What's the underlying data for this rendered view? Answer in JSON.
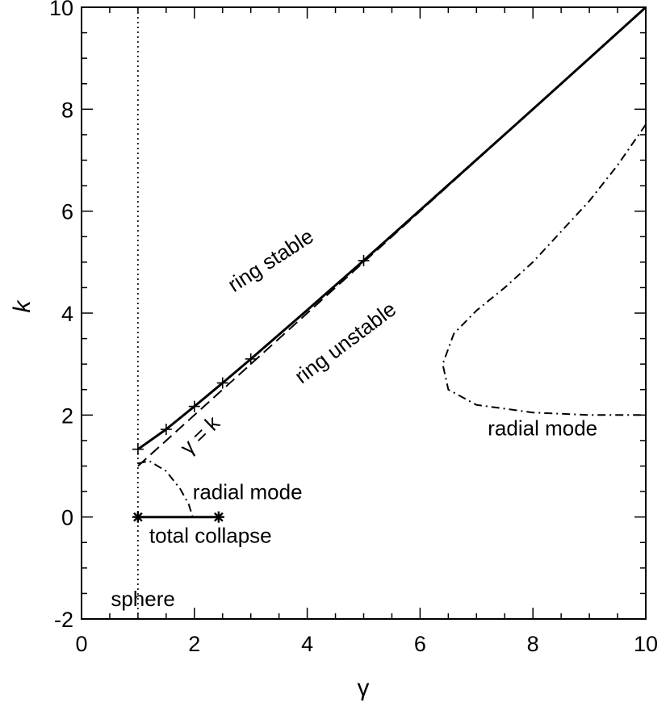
{
  "chart_data": {
    "type": "line",
    "xlabel": "γ",
    "ylabel": "k",
    "xlim": [
      0,
      10
    ],
    "ylim": [
      -2,
      10
    ],
    "x_ticks": [
      "0",
      "2",
      "4",
      "6",
      "8",
      "10"
    ],
    "y_ticks": [
      "-2",
      "0",
      "2",
      "4",
      "6",
      "8",
      "10"
    ],
    "grid": false,
    "series": [
      {
        "style": "solid",
        "x": [
          1.0,
          1.5,
          2.0,
          2.5,
          3.0,
          4.0,
          5.0,
          6.0,
          7.0,
          8.0,
          9.0,
          10.0
        ],
        "y": [
          1.33,
          1.72,
          2.17,
          2.63,
          3.1,
          4.06,
          5.03,
          6.02,
          7.01,
          8.0,
          9.0,
          10.0
        ]
      },
      {
        "style": "dashed",
        "x": [
          1.0,
          10.0
        ],
        "y": [
          1.0,
          10.0
        ]
      },
      {
        "style": "dashdot",
        "x": [
          1.0,
          1.2,
          1.5,
          1.75,
          1.9,
          1.97
        ],
        "y": [
          1.05,
          1.1,
          0.9,
          0.55,
          0.25,
          0.0
        ]
      },
      {
        "style": "dashdot",
        "x": [
          10.0,
          9.5,
          9.0,
          8.5,
          8.0,
          7.5,
          7.0,
          6.6,
          6.4,
          6.5,
          7.0,
          8.0,
          9.0,
          10.0
        ],
        "y": [
          7.7,
          6.9,
          6.2,
          5.6,
          5.0,
          4.5,
          4.05,
          3.6,
          3.0,
          2.5,
          2.2,
          2.05,
          2.0,
          2.0
        ]
      },
      {
        "style": "solid",
        "x": [
          1.0,
          2.43
        ],
        "y": [
          0.0,
          0.0
        ]
      },
      {
        "style": "dotted",
        "x": [
          1.0,
          1.0
        ],
        "y": [
          -2.0,
          10.0
        ]
      }
    ],
    "markers": {
      "plus": [
        [
          1.0,
          1.33
        ],
        [
          1.5,
          1.72
        ],
        [
          2.0,
          2.17
        ],
        [
          2.5,
          2.63
        ],
        [
          3.0,
          3.1
        ],
        [
          5.0,
          5.03
        ]
      ],
      "asterisk": [
        [
          1.0,
          0.0
        ],
        [
          2.43,
          0.0
        ]
      ]
    },
    "annotations": [
      {
        "text": "ring stable",
        "x": 2.7,
        "y": 4.4,
        "rotate": -33
      },
      {
        "text": "ring unstable",
        "x": 3.9,
        "y": 2.6,
        "rotate": -37
      },
      {
        "text": "γ = k",
        "x": 1.9,
        "y": 1.2,
        "rotate": -44
      },
      {
        "text": "radial mode",
        "x": 1.97,
        "y": 0.35,
        "rotate": 0
      },
      {
        "text": "radial mode",
        "x": 7.2,
        "y": 1.6,
        "rotate": 0
      },
      {
        "text": "total collapse",
        "x": 1.2,
        "y": -0.5,
        "rotate": 0
      },
      {
        "text": "sphere",
        "x": 0.52,
        "y": -1.75,
        "rotate": 0
      }
    ]
  }
}
